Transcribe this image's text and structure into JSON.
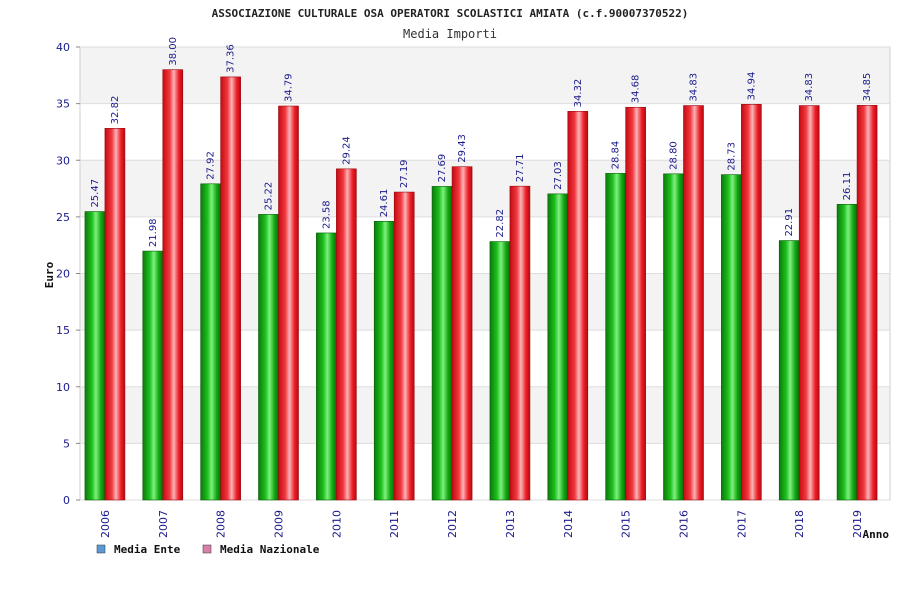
{
  "chart_data": {
    "type": "bar",
    "title": "ASSOCIAZIONE CULTURALE OSA OPERATORI SCOLASTICI AMIATA (c.f.90007370522)",
    "subtitle": "Media Importi",
    "ylabel": "Euro",
    "xlabel": "Anno",
    "ylim": [
      0,
      40
    ],
    "yticks": [
      "0",
      "5",
      "10",
      "15",
      "20",
      "25",
      "30",
      "35",
      "40"
    ],
    "categories": [
      "2006",
      "2007",
      "2008",
      "2009",
      "2010",
      "2011",
      "2012",
      "2013",
      "2014",
      "2015",
      "2016",
      "2017",
      "2018",
      "2019"
    ],
    "series": [
      {
        "name": "Media Ente",
        "color": "#0aa80a",
        "values": [
          25.47,
          21.98,
          27.92,
          25.22,
          23.58,
          24.61,
          27.69,
          22.82,
          27.03,
          28.84,
          28.8,
          28.73,
          22.91,
          26.11
        ],
        "labels": [
          "25.47",
          "21.98",
          "27.92",
          "25.22",
          "23.58",
          "24.61",
          "27.69",
          "22.82",
          "27.03",
          "28.84",
          "28.80",
          "28.73",
          "22.91",
          "26.11"
        ]
      },
      {
        "name": "Media Nazionale",
        "color": "#e8101a",
        "values": [
          32.82,
          38.0,
          37.36,
          34.79,
          29.24,
          27.19,
          29.43,
          27.71,
          34.32,
          34.68,
          34.83,
          34.94,
          34.83,
          34.85
        ],
        "labels": [
          "32.82",
          "38.00",
          "37.36",
          "34.79",
          "29.24",
          "27.19",
          "29.43",
          "27.71",
          "34.32",
          "34.68",
          "34.83",
          "34.94",
          "34.83",
          "34.85"
        ]
      }
    ],
    "legend": [
      {
        "label": "Media Ente",
        "color": "#5b9bd5"
      },
      {
        "label": "Media Nazionale",
        "color": "#d97fa8"
      }
    ]
  }
}
